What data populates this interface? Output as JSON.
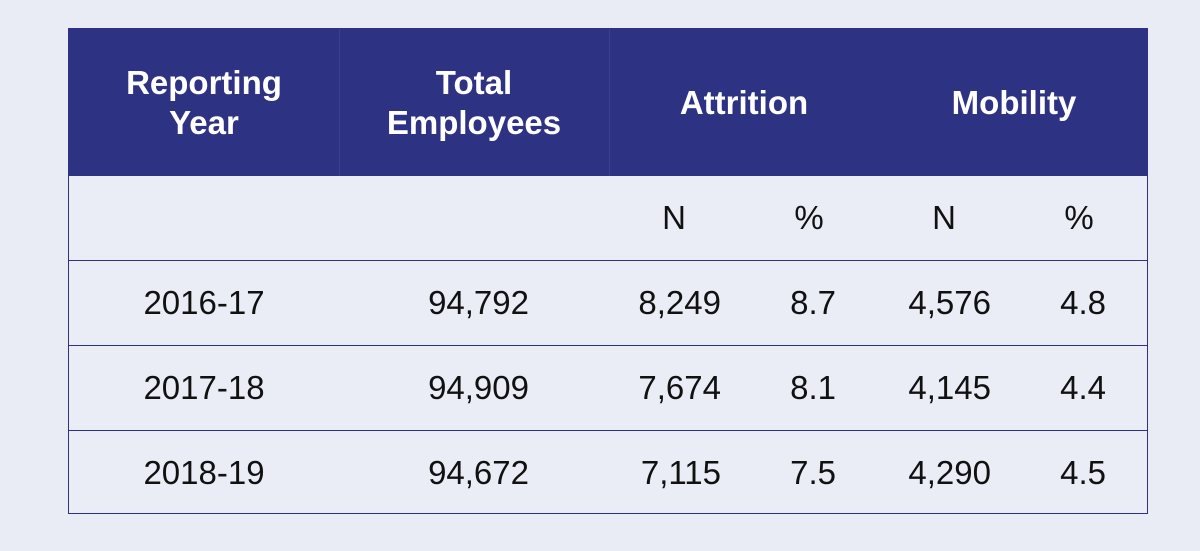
{
  "header": {
    "col1_line1": "Reporting",
    "col1_line2": "Year",
    "col2_line1": "Total",
    "col2_line2": "Employees",
    "col3": "Attrition",
    "col4": "Mobility"
  },
  "subheader": {
    "attrition_n": "N",
    "attrition_pct": "%",
    "mobility_n": "N",
    "mobility_pct": "%"
  },
  "rows": [
    {
      "year": "2016-17",
      "total": "94,792",
      "attr_n": "8,249",
      "attr_pct": "8.7",
      "mob_n": "4,576",
      "mob_pct": "4.8"
    },
    {
      "year": "2017-18",
      "total": "94,909",
      "attr_n": "7,674",
      "attr_pct": "8.1",
      "mob_n": "4,145",
      "mob_pct": "4.4"
    },
    {
      "year": "2018-19",
      "total": "94,672",
      "attr_n": "7,115",
      "attr_pct": "7.5",
      "mob_n": "4,290",
      "mob_pct": "4.5"
    }
  ]
}
